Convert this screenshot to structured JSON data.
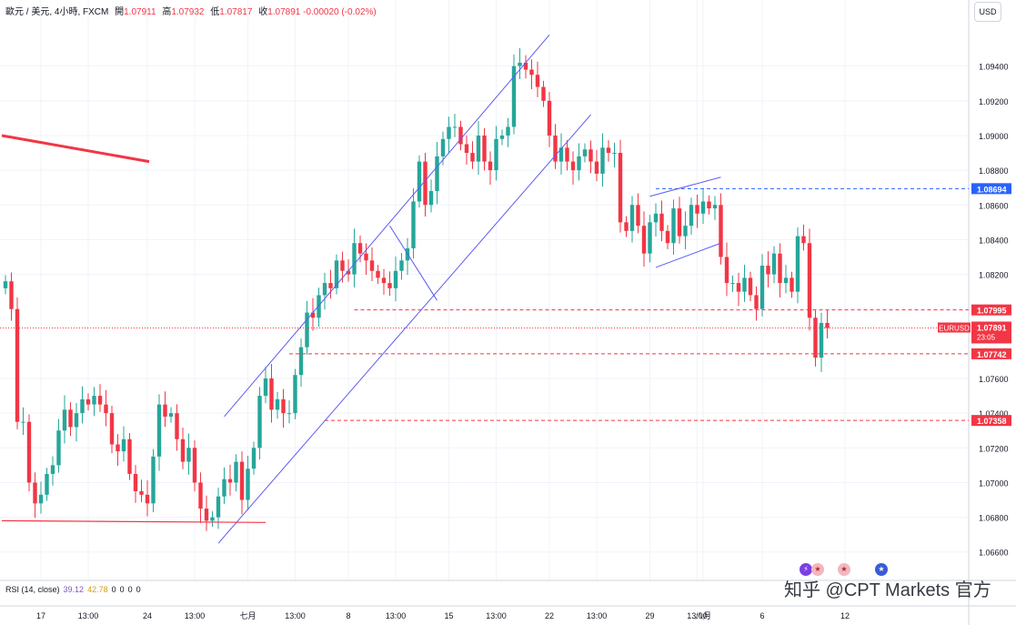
{
  "header": {
    "symbol_text": "歐元 / 美元, 4小時, FXCM",
    "open_label": "開",
    "open_value": "1.07911",
    "high_label": "高",
    "high_value": "1.07932",
    "low_label": "低",
    "low_value": "1.07817",
    "close_label": "收",
    "close_value": "1.07891",
    "change_value": "-0.00020 (-0.02%)"
  },
  "currency_button": "USD",
  "rsi": {
    "label": "RSI (14, close)",
    "value1": "39.12",
    "value2": "42.78",
    "zeros": [
      "0",
      "0",
      "0",
      "0"
    ]
  },
  "watermark": "知乎 @CPT Markets 官方",
  "colors": {
    "up": "#26a69a",
    "down": "#f23645",
    "trendline": "#5b5bf5",
    "red_line": "#f23645",
    "axis_text": "#131722",
    "grid": "#f0f3fa"
  },
  "chart_data": {
    "type": "candlestick",
    "title": "歐元 / 美元, 4小時, FXCM",
    "ylim": [
      1.0652,
      1.0965
    ],
    "y_ticks": [
      "1.09400",
      "1.09200",
      "1.09000",
      "1.08800",
      "1.08600",
      "1.08400",
      "1.08200",
      "1.07600",
      "1.07400",
      "1.07200",
      "1.07000",
      "1.06800",
      "1.06600"
    ],
    "x_ticks": [
      {
        "label": "17",
        "i": 6
      },
      {
        "label": "13:00",
        "i": 14
      },
      {
        "label": "24",
        "i": 24
      },
      {
        "label": "13:00",
        "i": 32
      },
      {
        "label": "七月",
        "i": 41
      },
      {
        "label": "13:00",
        "i": 49
      },
      {
        "label": "8",
        "i": 58
      },
      {
        "label": "13:00",
        "i": 66
      },
      {
        "label": "15",
        "i": 75
      },
      {
        "label": "13:00",
        "i": 83
      },
      {
        "label": "22",
        "i": 92
      },
      {
        "label": "13:00",
        "i": 100
      },
      {
        "label": "29",
        "i": 109
      },
      {
        "label": "13:00",
        "i": 117
      },
      {
        "label": "八月",
        "i": 118
      },
      {
        "label": "6",
        "i": 128
      },
      {
        "label": "12",
        "i": 142
      }
    ],
    "price_labels": [
      {
        "text": "1.08694",
        "value": 1.08694,
        "color": "#2962ff"
      },
      {
        "text": "1.07995",
        "value": 1.07995,
        "color": "#f23645"
      },
      {
        "text": "EURUSD",
        "value": 1.07891,
        "color": "#f23645",
        "extra": "1.07891",
        "sub": "23:05"
      },
      {
        "text": "1.07742",
        "value": 1.07742,
        "color": "#f23645"
      },
      {
        "text": "1.07358",
        "value": 1.07358,
        "color": "#f23645"
      }
    ],
    "last_price": 1.07891,
    "closes": [
      1.0816,
      1.08,
      1.0735,
      1.0735,
      1.07,
      1.0688,
      1.0693,
      1.0705,
      1.071,
      1.073,
      1.0742,
      1.0732,
      1.074,
      1.0748,
      1.0745,
      1.075,
      1.0745,
      1.074,
      1.0722,
      1.0718,
      1.0725,
      1.0705,
      1.0695,
      1.0693,
      1.0688,
      1.0715,
      1.0745,
      1.0738,
      1.074,
      1.0725,
      1.0712,
      1.072,
      1.07,
      1.0685,
      1.0678,
      1.068,
      1.0692,
      1.0702,
      1.07,
      1.0712,
      1.069,
      1.0708,
      1.072,
      1.075,
      1.076,
      1.0742,
      1.0748,
      1.074,
      1.074,
      1.0762,
      1.0778,
      1.0798,
      1.0795,
      1.0808,
      1.0815,
      1.0812,
      1.0828,
      1.0822,
      1.082,
      1.0838,
      1.0832,
      1.0828,
      1.0822,
      1.0818,
      1.0815,
      1.0812,
      1.0822,
      1.0828,
      1.0835,
      1.0862,
      1.0885,
      1.086,
      1.0868,
      1.0888,
      1.0898,
      1.0905,
      1.0905,
      1.0895,
      1.089,
      1.0885,
      1.09,
      1.0885,
      1.088,
      1.0898,
      1.09,
      1.0905,
      1.094,
      1.0942,
      1.0938,
      1.0935,
      1.0928,
      1.092,
      1.09,
      1.0885,
      1.0893,
      1.0885,
      1.088,
      1.0888,
      1.0892,
      1.0885,
      1.0878,
      1.0893,
      1.089,
      1.089,
      1.085,
      1.0845,
      1.086,
      1.0848,
      1.0832,
      1.085,
      1.0855,
      1.0845,
      1.0838,
      1.0858,
      1.0842,
      1.0848,
      1.086,
      1.0855,
      1.0862,
      1.0858,
      1.086,
      1.083,
      1.0815,
      1.0815,
      1.081,
      1.0818,
      1.0808,
      1.08,
      1.0825,
      1.082,
      1.0832,
      1.0815,
      1.0818,
      1.081,
      1.0842,
      1.0838,
      1.0795,
      1.0772,
      1.0792,
      1.0789
    ]
  }
}
